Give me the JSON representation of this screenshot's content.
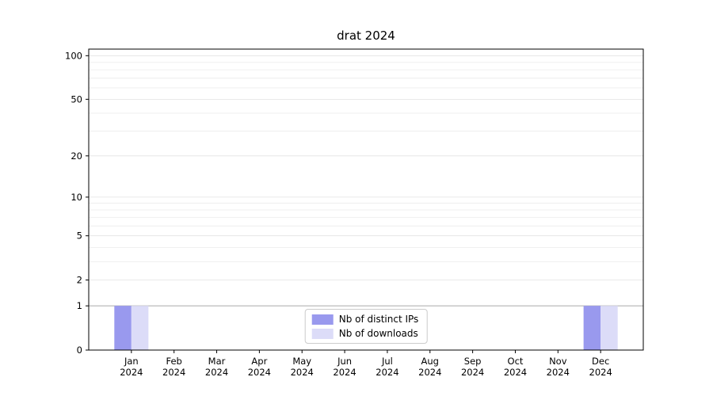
{
  "chart_data": {
    "type": "bar",
    "title": "drat 2024",
    "year": "2024",
    "categories": [
      "Jan",
      "Feb",
      "Mar",
      "Apr",
      "May",
      "Jun",
      "Jul",
      "Aug",
      "Sep",
      "Oct",
      "Nov",
      "Dec"
    ],
    "series": [
      {
        "name": "Nb of distinct IPs",
        "color": "#9999ee",
        "values": [
          1,
          0,
          0,
          0,
          0,
          0,
          0,
          0,
          0,
          0,
          0,
          1
        ]
      },
      {
        "name": "Nb of downloads",
        "color": "#dcdcf8",
        "values": [
          1,
          0,
          0,
          0,
          0,
          0,
          0,
          0,
          0,
          0,
          0,
          1
        ]
      }
    ],
    "yscale": "log1p",
    "yticks": [
      0,
      1,
      2,
      5,
      10,
      20,
      50,
      100
    ],
    "ylim": [
      0,
      111
    ],
    "grid": true,
    "legend_position": "bottom-center-inside"
  },
  "colors": {
    "grid_minor": "#ececec",
    "grid_major": "#e2e2e2",
    "gridline_one": "#b3b3b3",
    "axis": "#000000",
    "background": "#ffffff"
  }
}
